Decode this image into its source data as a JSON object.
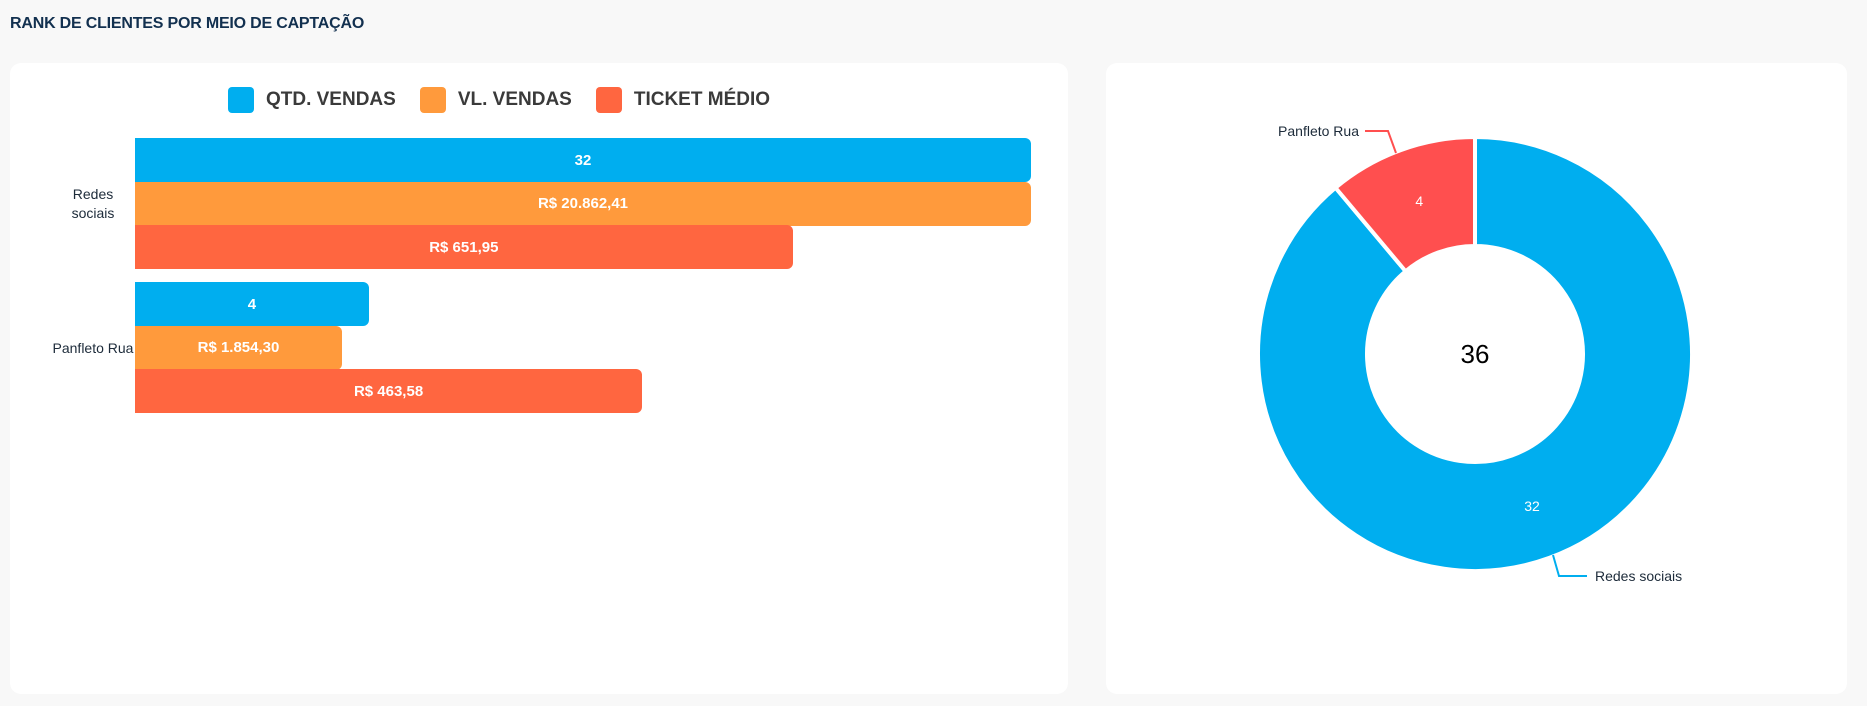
{
  "title": "RANK DE CLIENTES POR MEIO DE CAPTAÇÃO",
  "chart_data": [
    {
      "type": "bar",
      "orientation": "horizontal",
      "categories": [
        "Redes sociais",
        "Panfleto Rua"
      ],
      "category_labels": [
        "Redes\nsociais",
        "Panfleto Rua"
      ],
      "legend_position": "top",
      "series": [
        {
          "name": "QTD. VENDAS",
          "color": "#00aeef",
          "values": [
            32,
            4
          ],
          "labels": [
            "32",
            "4"
          ],
          "fill": [
            1.0,
            0.261
          ]
        },
        {
          "name": "VL. VENDAS",
          "color": "#ff9a3c",
          "values": [
            20862.41,
            1854.3
          ],
          "labels": [
            "R$ 20.862,41",
            "R$ 1.854,30"
          ],
          "fill": [
            1.0,
            0.231
          ]
        },
        {
          "name": "TICKET MÉDIO",
          "color": "#ff6640",
          "values": [
            651.95,
            463.58
          ],
          "labels": [
            "R$ 651,95",
            "R$ 463,58"
          ],
          "fill": [
            0.734,
            0.566
          ]
        }
      ]
    },
    {
      "type": "pie",
      "donut": true,
      "total_label": "36",
      "slices": [
        {
          "name": "Redes sociais",
          "value": 32,
          "label": "32",
          "color": "#00aeef"
        },
        {
          "name": "Panfleto Rua",
          "value": 4,
          "label": "4",
          "color": "#ff4f4f"
        }
      ]
    }
  ]
}
